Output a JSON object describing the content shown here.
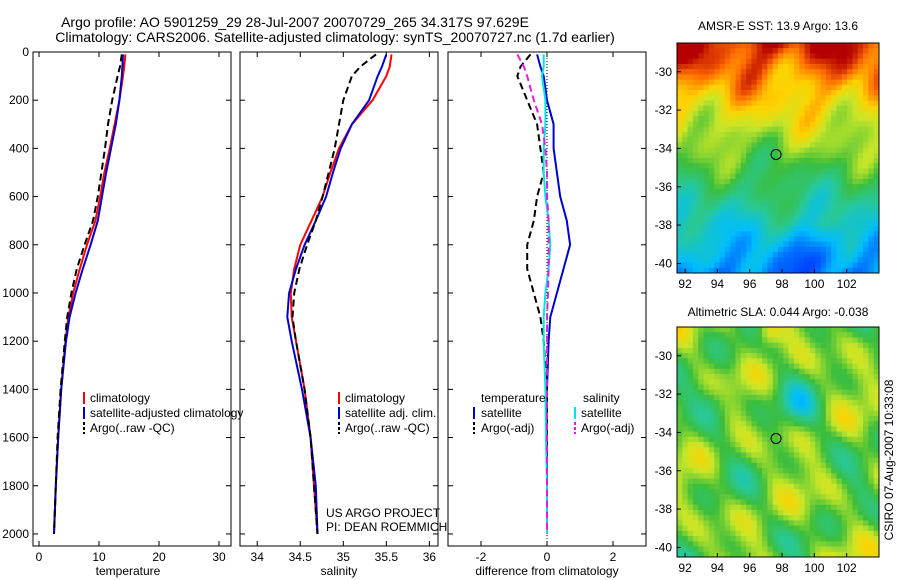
{
  "header": {
    "line1": "Argo profile: AO 5901259_29 28-Jul-2007 20070729_265 34.317S 97.629E",
    "line2": "Climatology: CARS2006. Satellite-adjusted climatology: synTS_20070727.nc (1.7d earlier)"
  },
  "side_label": "CSIRO 07-Aug-2007 10:33:08",
  "project_lines": [
    "US ARGO PROJECT",
    "PI: DEAN ROEMMICH"
  ],
  "colors": {
    "climatology": "#ff0000",
    "satellite": "#0000cc",
    "argo": "#000000",
    "satellite_salinity": "#00e5e5",
    "argo_salinity": "#e020e0"
  },
  "chart_data": [
    {
      "id": "temperature",
      "type": "line",
      "xlabel": "temperature",
      "xlim": [
        -1,
        32
      ],
      "ylim": [
        2050,
        0
      ],
      "xticks": [
        0,
        10,
        20,
        30
      ],
      "yticks": [
        0,
        200,
        400,
        600,
        800,
        1000,
        1200,
        1400,
        1600,
        1800,
        2000
      ],
      "legend": [
        "climatology",
        "satellite-adjusted climatology",
        "Argo(..raw -QC)"
      ],
      "series": [
        {
          "name": "climatology",
          "color": "#ff0000",
          "dash": "",
          "depth": [
            10,
            60,
            100,
            200,
            300,
            400,
            500,
            600,
            700,
            800,
            900,
            1000,
            1100,
            1200,
            1400,
            1600,
            1800,
            2000
          ],
          "values": [
            14.4,
            14.2,
            14.0,
            13.4,
            12.6,
            11.8,
            10.9,
            10.2,
            9.4,
            8.0,
            6.8,
            5.7,
            4.9,
            4.4,
            3.7,
            3.2,
            2.8,
            2.5
          ]
        },
        {
          "name": "satellite-adjusted climatology",
          "color": "#0000cc",
          "dash": "",
          "depth": [
            10,
            60,
            100,
            200,
            300,
            400,
            500,
            600,
            700,
            800,
            900,
            1000,
            1100,
            1200,
            1400,
            1600,
            1800,
            2000
          ],
          "values": [
            14.0,
            13.9,
            13.8,
            13.4,
            12.8,
            12.0,
            11.2,
            10.5,
            9.8,
            8.6,
            7.3,
            6.1,
            5.1,
            4.5,
            3.7,
            3.2,
            2.8,
            2.5
          ]
        },
        {
          "name": "Argo(..raw -QC)",
          "color": "#000000",
          "dash": "7,4",
          "depth": [
            10,
            60,
            100,
            200,
            300,
            400,
            500,
            600,
            700,
            800,
            900,
            1000,
            1100,
            1200,
            1400,
            1600,
            1800,
            2000
          ],
          "values": [
            13.8,
            13.5,
            13.1,
            12.2,
            11.5,
            11.0,
            10.4,
            9.8,
            9.0,
            7.6,
            6.3,
            5.4,
            4.7,
            4.3,
            3.6,
            3.1,
            2.8,
            2.5
          ]
        }
      ]
    },
    {
      "id": "salinity",
      "type": "line",
      "xlabel": "salinity",
      "xlim": [
        33.8,
        36.1
      ],
      "ylim": [
        2050,
        0
      ],
      "xticks": [
        34,
        34.5,
        35,
        35.5,
        36
      ],
      "legend": [
        "climatology",
        "satellite adj. clim.",
        "Argo(..raw -QC)"
      ],
      "series": [
        {
          "name": "climatology",
          "color": "#ff0000",
          "dash": "",
          "depth": [
            10,
            60,
            100,
            200,
            300,
            400,
            500,
            600,
            700,
            800,
            900,
            1000,
            1100,
            1200,
            1400,
            1600,
            1800,
            2000
          ],
          "values": [
            35.56,
            35.54,
            35.5,
            35.34,
            35.1,
            34.95,
            34.85,
            34.76,
            34.63,
            34.5,
            34.43,
            34.39,
            34.4,
            34.45,
            34.55,
            34.62,
            34.66,
            34.7
          ]
        },
        {
          "name": "satellite adj. clim.",
          "color": "#0000cc",
          "dash": "",
          "depth": [
            10,
            60,
            100,
            200,
            300,
            400,
            500,
            600,
            700,
            800,
            900,
            1000,
            1100,
            1200,
            1400,
            1600,
            1800,
            2000
          ],
          "values": [
            35.5,
            35.45,
            35.4,
            35.3,
            35.1,
            34.97,
            34.88,
            34.8,
            34.68,
            34.55,
            34.45,
            34.37,
            34.35,
            34.4,
            34.52,
            34.62,
            34.68,
            34.7
          ]
        },
        {
          "name": "Argo(..raw -QC)",
          "color": "#000000",
          "dash": "7,4",
          "depth": [
            10,
            60,
            100,
            200,
            300,
            400,
            500,
            600,
            700,
            800,
            900,
            1000,
            1100,
            1200,
            1400,
            1600,
            1800,
            2000
          ],
          "values": [
            35.38,
            35.2,
            35.1,
            35.0,
            34.95,
            34.9,
            34.83,
            34.76,
            34.68,
            34.58,
            34.49,
            34.43,
            34.41,
            34.45,
            34.55,
            34.62,
            34.66,
            34.7
          ]
        }
      ]
    },
    {
      "id": "difference",
      "type": "line",
      "xlabel": "difference from climatology",
      "xlim": [
        -3,
        3
      ],
      "ylim": [
        2050,
        0
      ],
      "xticks": [
        -2,
        0,
        2
      ],
      "legend_headers": [
        "temperature",
        "salinity"
      ],
      "legend": [
        "satellite",
        "Argo(-adj)",
        "satellite",
        "Argo(-adj)"
      ],
      "series": [
        {
          "name": "temperature satellite",
          "color": "#0000cc",
          "dash": "",
          "depth": [
            10,
            60,
            100,
            200,
            300,
            400,
            500,
            600,
            700,
            800,
            900,
            1000,
            1100,
            1200,
            1400,
            1600,
            1800,
            2000
          ],
          "values": [
            -0.3,
            -0.2,
            -0.1,
            0.0,
            0.2,
            0.2,
            0.3,
            0.4,
            0.6,
            0.7,
            0.5,
            0.3,
            0.1,
            0.05,
            0.0,
            0.0,
            0.0,
            0.0
          ]
        },
        {
          "name": "temperature Argo(-adj)",
          "color": "#000000",
          "dash": "7,4",
          "depth": [
            10,
            60,
            100,
            200,
            300,
            400,
            500,
            600,
            700,
            800,
            900,
            1000,
            1100,
            1200,
            1400,
            1600,
            1800,
            2000
          ],
          "values": [
            -0.5,
            -0.8,
            -0.9,
            -0.6,
            -0.3,
            -0.2,
            -0.1,
            -0.3,
            -0.4,
            -0.6,
            -0.6,
            -0.4,
            -0.2,
            -0.1,
            0.0,
            0.0,
            0.0,
            0.0
          ]
        },
        {
          "name": "salinity satellite",
          "color": "#00e5e5",
          "dash": "",
          "depth": [
            10,
            60,
            100,
            200,
            300,
            400,
            500,
            600,
            700,
            800,
            900,
            1000,
            1100,
            1200,
            1400,
            1600,
            1800,
            2000
          ],
          "values": [
            -0.1,
            -0.1,
            -0.15,
            -0.05,
            -0.05,
            -0.1,
            -0.1,
            -0.05,
            0.05,
            0.1,
            0.05,
            -0.05,
            -0.1,
            -0.1,
            -0.05,
            -0.03,
            0.0,
            0.0
          ]
        },
        {
          "name": "salinity Argo(-adj)",
          "color": "#e020e0",
          "dash": "7,4",
          "depth": [
            10,
            60,
            100,
            200,
            300,
            400,
            500,
            600,
            700,
            800,
            900,
            1000,
            1100,
            1200,
            1400,
            1600,
            1800,
            2000
          ],
          "values": [
            -0.9,
            -0.7,
            -0.6,
            -0.4,
            -0.15,
            -0.05,
            0.0,
            0.0,
            0.05,
            0.05,
            0.05,
            0.03,
            0.0,
            0.0,
            0.0,
            0.0,
            0.0,
            0.0
          ]
        }
      ]
    },
    {
      "id": "sst-map",
      "type": "heatmap",
      "title": "AMSR-E SST: 13.9 Argo: 13.6",
      "xlim": [
        91.5,
        104
      ],
      "ylim": [
        -40.5,
        -28.5
      ],
      "xticks": [
        92,
        94,
        96,
        98,
        100,
        102
      ],
      "yticks": [
        -30,
        -32,
        -34,
        -36,
        -38,
        -40
      ],
      "marker": [
        97.629,
        -34.317
      ]
    },
    {
      "id": "sla-map",
      "type": "heatmap",
      "title": "Altimetric SLA: 0.044 Argo: -0.038",
      "xlim": [
        91.5,
        104
      ],
      "ylim": [
        -40.5,
        -28.5
      ],
      "xticks": [
        92,
        94,
        96,
        98,
        100,
        102
      ],
      "yticks": [
        -30,
        -32,
        -34,
        -36,
        -38,
        -40
      ],
      "marker": [
        97.629,
        -34.317
      ]
    }
  ]
}
